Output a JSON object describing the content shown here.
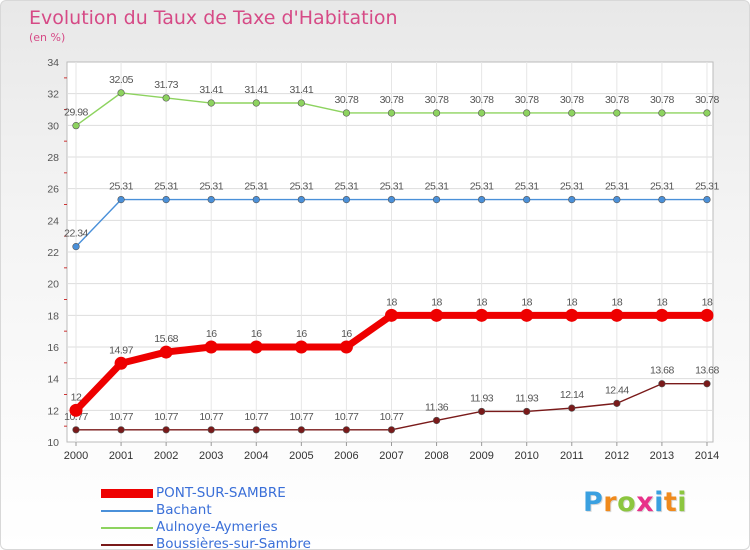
{
  "chart_data": {
    "type": "line",
    "title": "Evolution du Taux de Taxe d'Habitation",
    "ylabel": "(en %)",
    "xlabel": "",
    "ylim": [
      10,
      34
    ],
    "y_ticks": [
      10,
      12,
      14,
      16,
      18,
      20,
      22,
      24,
      26,
      28,
      30,
      32,
      34
    ],
    "categories": [
      "2000",
      "2001",
      "2002",
      "2003",
      "2004",
      "2005",
      "2006",
      "2007",
      "2008",
      "2009",
      "2010",
      "2011",
      "2012",
      "2013",
      "2014"
    ],
    "series": [
      {
        "name": "Aulnoye-Aymeries",
        "color": "#8dd35f",
        "values": [
          29.98,
          32.05,
          31.73,
          31.41,
          31.41,
          31.41,
          30.78,
          30.78,
          30.78,
          30.78,
          30.78,
          30.78,
          30.78,
          30.78,
          30.78
        ],
        "labels": [
          "29.98",
          "32.05",
          "31.73",
          "31.41",
          "31.41",
          "31.41",
          "30.78",
          "30.78",
          "30.78",
          "30.78",
          "30.78",
          "30.78",
          "30.78",
          "30.78",
          "30.78"
        ]
      },
      {
        "name": "Bachant",
        "color": "#4a90d9",
        "values": [
          22.34,
          25.31,
          25.31,
          25.31,
          25.31,
          25.31,
          25.31,
          25.31,
          25.31,
          25.31,
          25.31,
          25.31,
          25.31,
          25.31,
          25.31
        ],
        "labels": [
          "22.34",
          "25.31",
          "25.31",
          "25.31",
          "25.31",
          "25.31",
          "25.31",
          "25.31",
          "25.31",
          "25.31",
          "25.31",
          "25.31",
          "25.31",
          "25.31",
          "25.31"
        ]
      },
      {
        "name": "PONT-SUR-SAMBRE",
        "color": "#ee0000",
        "values": [
          12,
          14.97,
          15.68,
          16,
          16,
          16,
          16,
          18,
          18,
          18,
          18,
          18,
          18,
          18,
          18
        ],
        "labels": [
          "12",
          "14.97",
          "15.68",
          "16",
          "16",
          "16",
          "16",
          "18",
          "18",
          "18",
          "18",
          "18",
          "18",
          "18",
          "18"
        ]
      },
      {
        "name": "Boussières-sur-Sambre",
        "color": "#7a1a1a",
        "values": [
          10.77,
          10.77,
          10.77,
          10.77,
          10.77,
          10.77,
          10.77,
          10.77,
          11.36,
          11.93,
          11.93,
          12.14,
          12.44,
          13.68,
          13.68
        ],
        "labels": [
          "10.77",
          "10.77",
          "10.77",
          "10.77",
          "10.77",
          "10.77",
          "10.77",
          "10.77",
          "11.36",
          "11.93",
          "11.93",
          "12.14",
          "12.44",
          "13.68",
          "13.68"
        ]
      }
    ],
    "legend": {
      "position": "bottom-left",
      "entries": [
        {
          "name": "PONT-SUR-SAMBRE",
          "color": "#ee0000"
        },
        {
          "name": "Bachant",
          "color": "#4a90d9"
        },
        {
          "name": "Aulnoye-Aymeries",
          "color": "#8dd35f"
        },
        {
          "name": "Boussières-sur-Sambre",
          "color": "#7a1a1a"
        }
      ]
    }
  },
  "logo": {
    "letters": [
      "P",
      "r",
      "o",
      "x",
      "i",
      "t",
      "i"
    ],
    "colors": [
      "#3aa0e0",
      "#f08a1c",
      "#8cc63f",
      "#e8318a",
      "#3aa0e0",
      "#f08a1c",
      "#8cc63f"
    ]
  }
}
